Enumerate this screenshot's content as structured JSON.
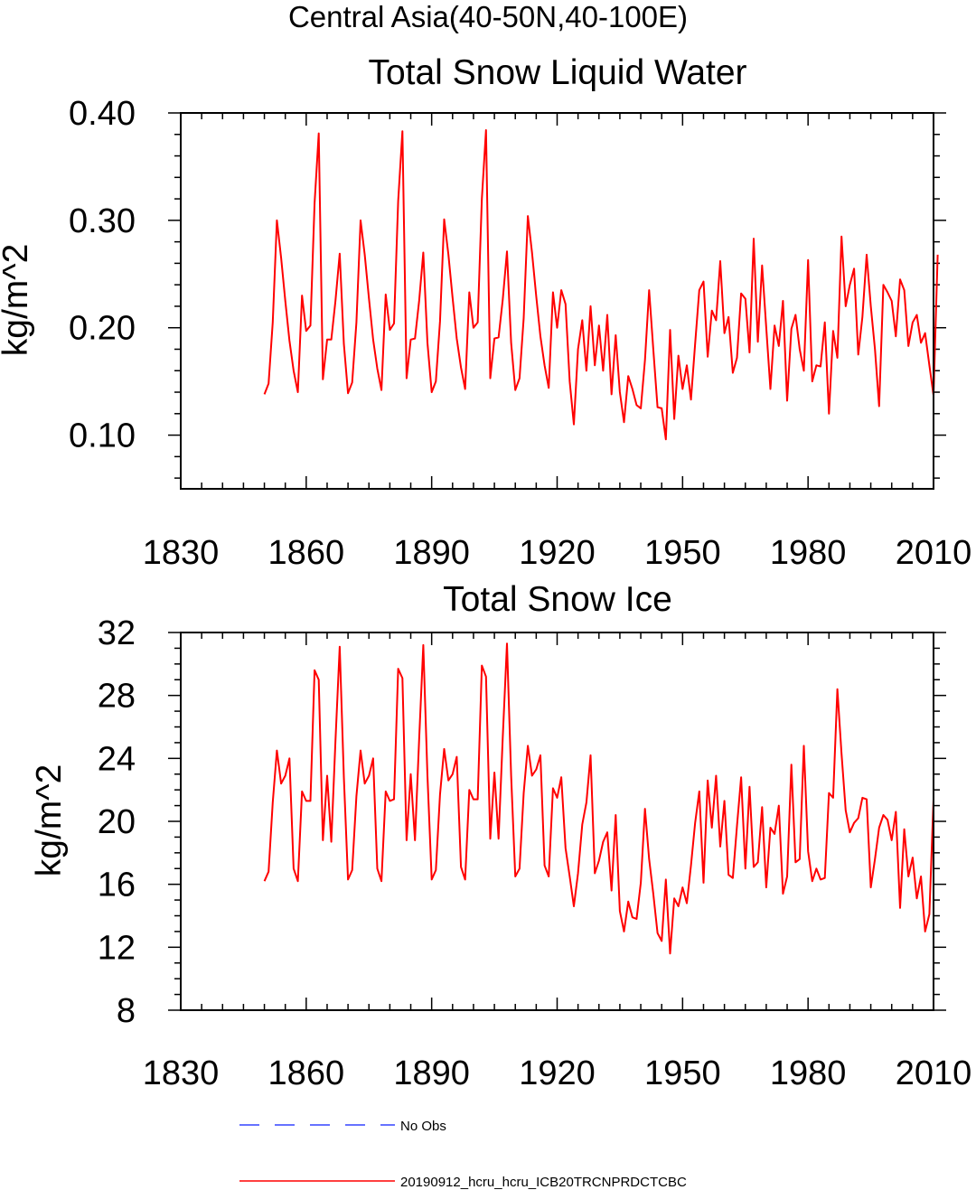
{
  "figure_title": "Central Asia(40-50N,40-100E)",
  "legend": [
    {
      "label": "No Obs",
      "color": "#3344ff",
      "style": "dashed"
    },
    {
      "label": "20190912_hcru_hcru_ICB20TRCNPRDCTCBC",
      "color": "#ff0000",
      "style": "solid"
    }
  ],
  "chart_data": [
    {
      "type": "line",
      "title": "Total Snow Liquid Water",
      "xlabel": "",
      "ylabel": "kg/m^2",
      "xlim": [
        1830,
        2010
      ],
      "ylim": [
        0.05,
        0.4
      ],
      "xticks": [
        "1830",
        "1860",
        "1890",
        "1920",
        "1950",
        "1980",
        "2010"
      ],
      "yticks": [
        "0.10",
        "0.20",
        "0.30",
        "0.40"
      ],
      "series": [
        {
          "name": "20190912_hcru_hcru_ICB20TRCNPRDCTCBC",
          "color": "#ff0000",
          "x_start": 1850,
          "values": [
            0.138,
            0.148,
            0.205,
            0.3,
            0.265,
            0.225,
            0.188,
            0.16,
            0.14,
            0.23,
            0.197,
            0.202,
            0.316,
            0.381,
            0.152,
            0.189,
            0.189,
            0.225,
            0.269,
            0.185,
            0.139,
            0.149,
            0.205,
            0.3,
            0.268,
            0.227,
            0.189,
            0.162,
            0.142,
            0.231,
            0.198,
            0.204,
            0.318,
            0.383,
            0.153,
            0.189,
            0.19,
            0.225,
            0.27,
            0.186,
            0.14,
            0.15,
            0.206,
            0.301,
            0.268,
            0.228,
            0.19,
            0.163,
            0.143,
            0.233,
            0.2,
            0.205,
            0.32,
            0.384,
            0.153,
            0.19,
            0.191,
            0.226,
            0.271,
            0.186,
            0.142,
            0.153,
            0.209,
            0.304,
            0.27,
            0.229,
            0.192,
            0.165,
            0.144,
            0.233,
            0.2,
            0.235,
            0.222,
            0.15,
            0.11,
            0.18,
            0.207,
            0.16,
            0.22,
            0.165,
            0.202,
            0.16,
            0.212,
            0.138,
            0.193,
            0.14,
            0.112,
            0.155,
            0.143,
            0.128,
            0.125,
            0.17,
            0.235,
            0.18,
            0.126,
            0.125,
            0.096,
            0.198,
            0.115,
            0.174,
            0.143,
            0.165,
            0.133,
            0.185,
            0.235,
            0.243,
            0.173,
            0.216,
            0.207,
            0.262,
            0.195,
            0.21,
            0.158,
            0.172,
            0.232,
            0.227,
            0.177,
            0.283,
            0.187,
            0.258,
            0.2,
            0.143,
            0.202,
            0.183,
            0.225,
            0.132,
            0.199,
            0.212,
            0.18,
            0.16,
            0.263,
            0.15,
            0.165,
            0.164,
            0.205,
            0.12,
            0.197,
            0.172,
            0.285,
            0.22,
            0.24,
            0.255,
            0.175,
            0.21,
            0.268,
            0.22,
            0.18,
            0.127,
            0.24,
            0.233,
            0.225,
            0.192,
            0.245,
            0.235,
            0.183,
            0.205,
            0.212,
            0.186,
            0.195,
            0.165,
            0.137,
            0.268
          ]
        }
      ]
    },
    {
      "type": "line",
      "title": "Total Snow Ice",
      "xlabel": "",
      "ylabel": "kg/m^2",
      "xlim": [
        1830,
        2010
      ],
      "ylim": [
        8,
        32
      ],
      "xticks": [
        "1830",
        "1860",
        "1890",
        "1920",
        "1950",
        "1980",
        "2010"
      ],
      "yticks": [
        "8",
        "12",
        "16",
        "20",
        "24",
        "28",
        "32"
      ],
      "series": [
        {
          "name": "20190912_hcru_hcru_ICB20TRCNPRDCTCBC",
          "color": "#ff0000",
          "x_start": 1850,
          "values": [
            16.2,
            16.8,
            21.2,
            24.5,
            22.4,
            22.9,
            24.0,
            17.0,
            16.2,
            21.9,
            21.3,
            21.3,
            29.6,
            29.0,
            18.8,
            22.9,
            18.7,
            25.1,
            31.1,
            22.8,
            16.3,
            16.9,
            21.6,
            24.5,
            22.4,
            22.9,
            24.0,
            17.0,
            16.2,
            21.9,
            21.3,
            21.4,
            29.7,
            29.1,
            18.8,
            23.0,
            18.8,
            25.2,
            31.2,
            22.9,
            16.3,
            16.9,
            21.7,
            24.6,
            22.6,
            23.0,
            24.1,
            17.1,
            16.3,
            22.0,
            21.4,
            21.4,
            29.9,
            29.2,
            18.9,
            23.1,
            18.9,
            25.3,
            31.3,
            22.9,
            16.5,
            17.0,
            21.8,
            24.8,
            22.9,
            23.3,
            24.2,
            17.2,
            16.5,
            22.1,
            21.5,
            22.8,
            18.3,
            16.5,
            14.6,
            16.7,
            19.8,
            21.2,
            24.2,
            16.7,
            17.5,
            18.7,
            19.3,
            15.6,
            20.4,
            14.3,
            13.0,
            14.9,
            13.9,
            13.8,
            16.1,
            20.8,
            17.6,
            15.4,
            12.9,
            12.4,
            16.3,
            11.6,
            15.1,
            14.6,
            15.8,
            14.8,
            17.2,
            19.9,
            21.9,
            16.1,
            22.6,
            19.6,
            22.9,
            18.4,
            21.3,
            16.6,
            16.4,
            19.7,
            22.8,
            17.0,
            22.2,
            17.1,
            17.4,
            20.9,
            15.8,
            19.6,
            19.2,
            21.0,
            15.4,
            16.5,
            23.6,
            17.4,
            17.6,
            24.8,
            18.1,
            16.2,
            17.0,
            16.3,
            16.4,
            21.8,
            21.5,
            28.4,
            24.3,
            20.7,
            19.3,
            19.9,
            20.2,
            21.5,
            21.4,
            15.8,
            17.6,
            19.6,
            20.4,
            20.1,
            18.8,
            20.6,
            14.5,
            19.5,
            16.5,
            17.7,
            15.1,
            16.5,
            13.0,
            14.1,
            21.4
          ]
        }
      ]
    }
  ]
}
